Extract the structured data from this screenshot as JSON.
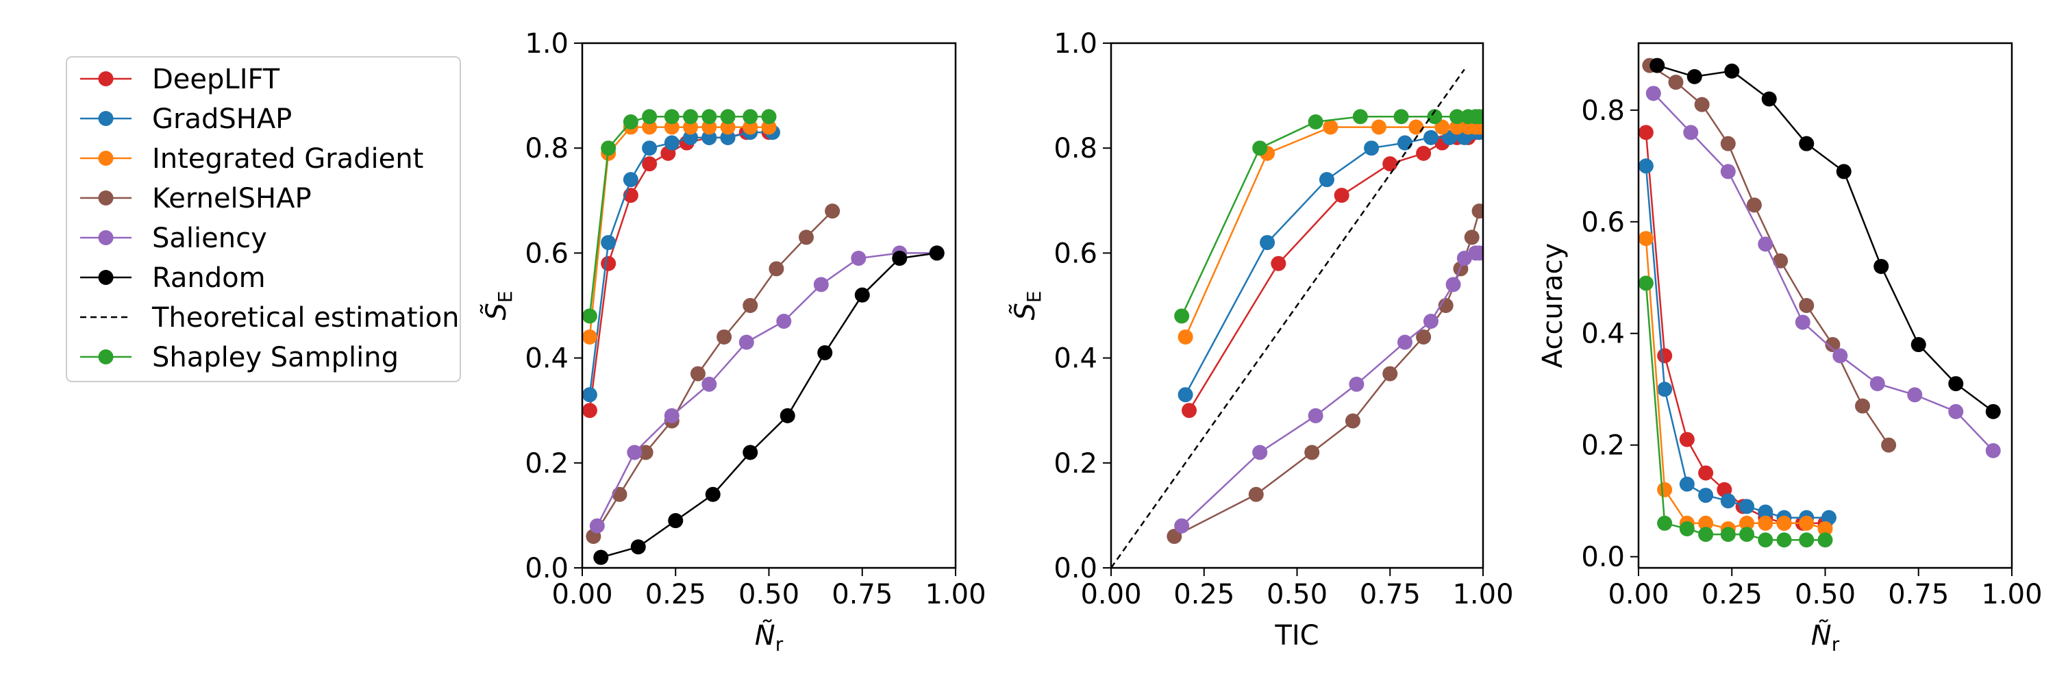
{
  "legend": {
    "entries": [
      {
        "label": "DeepLIFT",
        "color": "#d62728",
        "style": "line-marker"
      },
      {
        "label": "GradSHAP",
        "color": "#1f77b4",
        "style": "line-marker"
      },
      {
        "label": "Integrated Gradient",
        "color": "#ff7f0e",
        "style": "line-marker"
      },
      {
        "label": "KernelSHAP",
        "color": "#8c564b",
        "style": "line-marker"
      },
      {
        "label": "Saliency",
        "color": "#9467bd",
        "style": "line-marker"
      },
      {
        "label": "Random",
        "color": "#000000",
        "style": "line-marker"
      },
      {
        "label": "Theoretical estimation",
        "color": "#000000",
        "style": "dashed"
      },
      {
        "label": "Shapley Sampling",
        "color": "#2ca02c",
        "style": "line-marker"
      }
    ]
  },
  "chart_data": [
    {
      "type": "line",
      "title": "",
      "xlabel": "Ñ_r",
      "ylabel": "S̃_E",
      "xlim": [
        0,
        1
      ],
      "ylim": [
        0,
        1
      ],
      "xticks": [
        "0.00",
        "0.25",
        "0.50",
        "0.75",
        "1.00"
      ],
      "yticks": [
        "0.0",
        "0.2",
        "0.4",
        "0.6",
        "0.8",
        "1.0"
      ],
      "series": [
        {
          "name": "DeepLIFT",
          "x": [
            0.02,
            0.07,
            0.13,
            0.18,
            0.23,
            0.28,
            0.34,
            0.39,
            0.44,
            0.5
          ],
          "y": [
            0.3,
            0.58,
            0.71,
            0.77,
            0.79,
            0.81,
            0.82,
            0.82,
            0.83,
            0.83
          ]
        },
        {
          "name": "GradSHAP",
          "x": [
            0.02,
            0.07,
            0.13,
            0.18,
            0.24,
            0.29,
            0.34,
            0.39,
            0.45,
            0.51
          ],
          "y": [
            0.33,
            0.62,
            0.74,
            0.8,
            0.81,
            0.82,
            0.82,
            0.82,
            0.83,
            0.83
          ]
        },
        {
          "name": "Integrated Gradient",
          "x": [
            0.02,
            0.07,
            0.13,
            0.18,
            0.24,
            0.29,
            0.34,
            0.39,
            0.45,
            0.5
          ],
          "y": [
            0.44,
            0.79,
            0.84,
            0.84,
            0.84,
            0.84,
            0.84,
            0.84,
            0.84,
            0.84
          ]
        },
        {
          "name": "KernelSHAP",
          "x": [
            0.03,
            0.1,
            0.17,
            0.24,
            0.31,
            0.38,
            0.45,
            0.52,
            0.6,
            0.67
          ],
          "y": [
            0.06,
            0.14,
            0.22,
            0.28,
            0.37,
            0.44,
            0.5,
            0.57,
            0.63,
            0.68
          ]
        },
        {
          "name": "Saliency",
          "x": [
            0.04,
            0.14,
            0.24,
            0.34,
            0.44,
            0.54,
            0.64,
            0.74,
            0.85,
            0.95
          ],
          "y": [
            0.08,
            0.22,
            0.29,
            0.35,
            0.43,
            0.47,
            0.54,
            0.59,
            0.6,
            0.6
          ]
        },
        {
          "name": "Random",
          "x": [
            0.05,
            0.15,
            0.25,
            0.35,
            0.45,
            0.55,
            0.65,
            0.75,
            0.85,
            0.95
          ],
          "y": [
            0.02,
            0.04,
            0.09,
            0.14,
            0.22,
            0.29,
            0.41,
            0.52,
            0.59,
            0.6
          ]
        },
        {
          "name": "Shapley Sampling",
          "x": [
            0.02,
            0.07,
            0.13,
            0.18,
            0.24,
            0.29,
            0.34,
            0.39,
            0.45,
            0.5
          ],
          "y": [
            0.48,
            0.8,
            0.85,
            0.86,
            0.86,
            0.86,
            0.86,
            0.86,
            0.86,
            0.86
          ]
        }
      ]
    },
    {
      "type": "line",
      "title": "",
      "xlabel": "TIC",
      "ylabel": "S̃_E",
      "xlim": [
        0,
        1
      ],
      "ylim": [
        0,
        1
      ],
      "xticks": [
        "0.00",
        "0.25",
        "0.50",
        "0.75",
        "1.00"
      ],
      "yticks": [
        "0.0",
        "0.2",
        "0.4",
        "0.6",
        "0.8",
        "1.0"
      ],
      "series": [
        {
          "name": "DeepLIFT",
          "x": [
            0.21,
            0.45,
            0.62,
            0.75,
            0.84,
            0.89,
            0.93,
            0.96,
            0.98,
            0.99
          ],
          "y": [
            0.3,
            0.58,
            0.71,
            0.77,
            0.79,
            0.81,
            0.82,
            0.82,
            0.83,
            0.83
          ]
        },
        {
          "name": "GradSHAP",
          "x": [
            0.2,
            0.42,
            0.58,
            0.7,
            0.79,
            0.86,
            0.91,
            0.95,
            0.97,
            0.99
          ],
          "y": [
            0.33,
            0.62,
            0.74,
            0.8,
            0.81,
            0.82,
            0.82,
            0.82,
            0.83,
            0.83
          ]
        },
        {
          "name": "Integrated Gradient",
          "x": [
            0.2,
            0.42,
            0.59,
            0.72,
            0.82,
            0.89,
            0.93,
            0.96,
            0.98,
            0.99
          ],
          "y": [
            0.44,
            0.79,
            0.84,
            0.84,
            0.84,
            0.84,
            0.84,
            0.84,
            0.84,
            0.84
          ]
        },
        {
          "name": "KernelSHAP",
          "x": [
            0.17,
            0.39,
            0.54,
            0.65,
            0.75,
            0.84,
            0.9,
            0.94,
            0.97,
            0.99
          ],
          "y": [
            0.06,
            0.14,
            0.22,
            0.28,
            0.37,
            0.44,
            0.5,
            0.57,
            0.63,
            0.68
          ]
        },
        {
          "name": "Saliency",
          "x": [
            0.19,
            0.4,
            0.55,
            0.66,
            0.79,
            0.86,
            0.92,
            0.95,
            0.98,
            0.99
          ],
          "y": [
            0.08,
            0.22,
            0.29,
            0.35,
            0.43,
            0.47,
            0.54,
            0.59,
            0.6,
            0.6
          ]
        },
        {
          "name": "Shapley Sampling",
          "x": [
            0.19,
            0.4,
            0.55,
            0.67,
            0.78,
            0.87,
            0.93,
            0.96,
            0.98,
            0.99
          ],
          "y": [
            0.48,
            0.8,
            0.85,
            0.86,
            0.86,
            0.86,
            0.86,
            0.86,
            0.86,
            0.86
          ]
        },
        {
          "name": "Theoretical estimation",
          "x": [
            0.0,
            0.95
          ],
          "y": [
            0.0,
            0.95
          ]
        }
      ]
    },
    {
      "type": "line",
      "title": "",
      "xlabel": "Ñ_r",
      "ylabel": "Accuracy",
      "xlim": [
        0,
        1
      ],
      "ylim": [
        -0.02,
        0.92
      ],
      "xticks": [
        "0.00",
        "0.25",
        "0.50",
        "0.75",
        "1.00"
      ],
      "yticks": [
        "0.0",
        "0.2",
        "0.4",
        "0.6",
        "0.8"
      ],
      "series": [
        {
          "name": "DeepLIFT",
          "x": [
            0.02,
            0.07,
            0.13,
            0.18,
            0.23,
            0.28,
            0.34,
            0.39,
            0.44,
            0.5
          ],
          "y": [
            0.76,
            0.36,
            0.21,
            0.15,
            0.12,
            0.09,
            0.07,
            0.06,
            0.06,
            0.06
          ]
        },
        {
          "name": "GradSHAP",
          "x": [
            0.02,
            0.07,
            0.13,
            0.18,
            0.24,
            0.29,
            0.34,
            0.39,
            0.45,
            0.51
          ],
          "y": [
            0.7,
            0.3,
            0.13,
            0.11,
            0.1,
            0.09,
            0.08,
            0.07,
            0.07,
            0.07
          ]
        },
        {
          "name": "Integrated Gradient",
          "x": [
            0.02,
            0.07,
            0.13,
            0.18,
            0.24,
            0.29,
            0.34,
            0.39,
            0.45,
            0.5
          ],
          "y": [
            0.57,
            0.12,
            0.06,
            0.06,
            0.05,
            0.06,
            0.06,
            0.06,
            0.06,
            0.05
          ]
        },
        {
          "name": "KernelSHAP",
          "x": [
            0.03,
            0.1,
            0.17,
            0.24,
            0.31,
            0.38,
            0.45,
            0.52,
            0.6,
            0.67
          ],
          "y": [
            0.88,
            0.85,
            0.81,
            0.74,
            0.63,
            0.53,
            0.45,
            0.38,
            0.27,
            0.2
          ]
        },
        {
          "name": "Saliency",
          "x": [
            0.04,
            0.14,
            0.24,
            0.34,
            0.44,
            0.54,
            0.64,
            0.74,
            0.85,
            0.95
          ],
          "y": [
            0.83,
            0.76,
            0.69,
            0.56,
            0.42,
            0.36,
            0.31,
            0.29,
            0.26,
            0.19
          ]
        },
        {
          "name": "Random",
          "x": [
            0.05,
            0.15,
            0.25,
            0.35,
            0.45,
            0.55,
            0.65,
            0.75,
            0.85,
            0.95
          ],
          "y": [
            0.88,
            0.86,
            0.87,
            0.82,
            0.74,
            0.69,
            0.52,
            0.38,
            0.31,
            0.26
          ]
        },
        {
          "name": "Shapley Sampling",
          "x": [
            0.02,
            0.07,
            0.13,
            0.18,
            0.24,
            0.29,
            0.34,
            0.39,
            0.45,
            0.5
          ],
          "y": [
            0.49,
            0.06,
            0.05,
            0.04,
            0.04,
            0.04,
            0.03,
            0.03,
            0.03,
            0.03
          ]
        }
      ]
    }
  ]
}
